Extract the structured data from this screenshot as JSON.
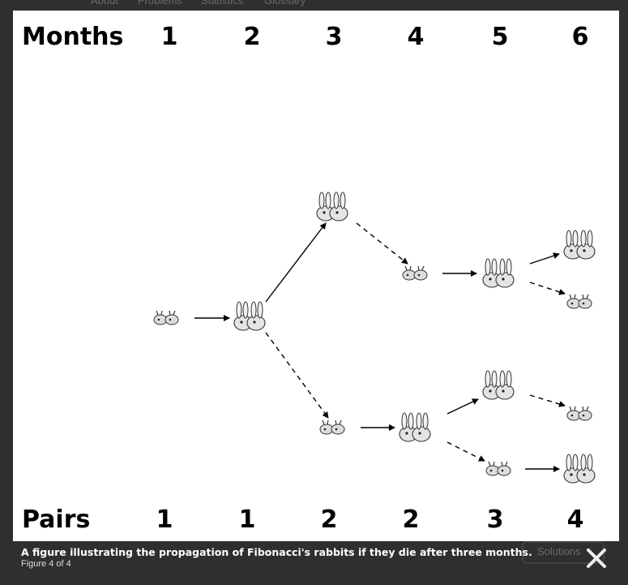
{
  "background": {
    "nav": [
      "About",
      "Problems",
      "Statistics",
      "Glossary"
    ],
    "button": "Solutions"
  },
  "figure": {
    "header_label": "Months",
    "months": [
      1,
      2,
      3,
      4,
      5,
      6
    ],
    "footer_label": "Pairs",
    "pairs": [
      1,
      1,
      2,
      2,
      3,
      4
    ]
  },
  "caption": {
    "text": "A figure illustrating the propagation of Fibonacci's rabbits if they die after three months.",
    "counter": "Figure 4 of 4"
  }
}
